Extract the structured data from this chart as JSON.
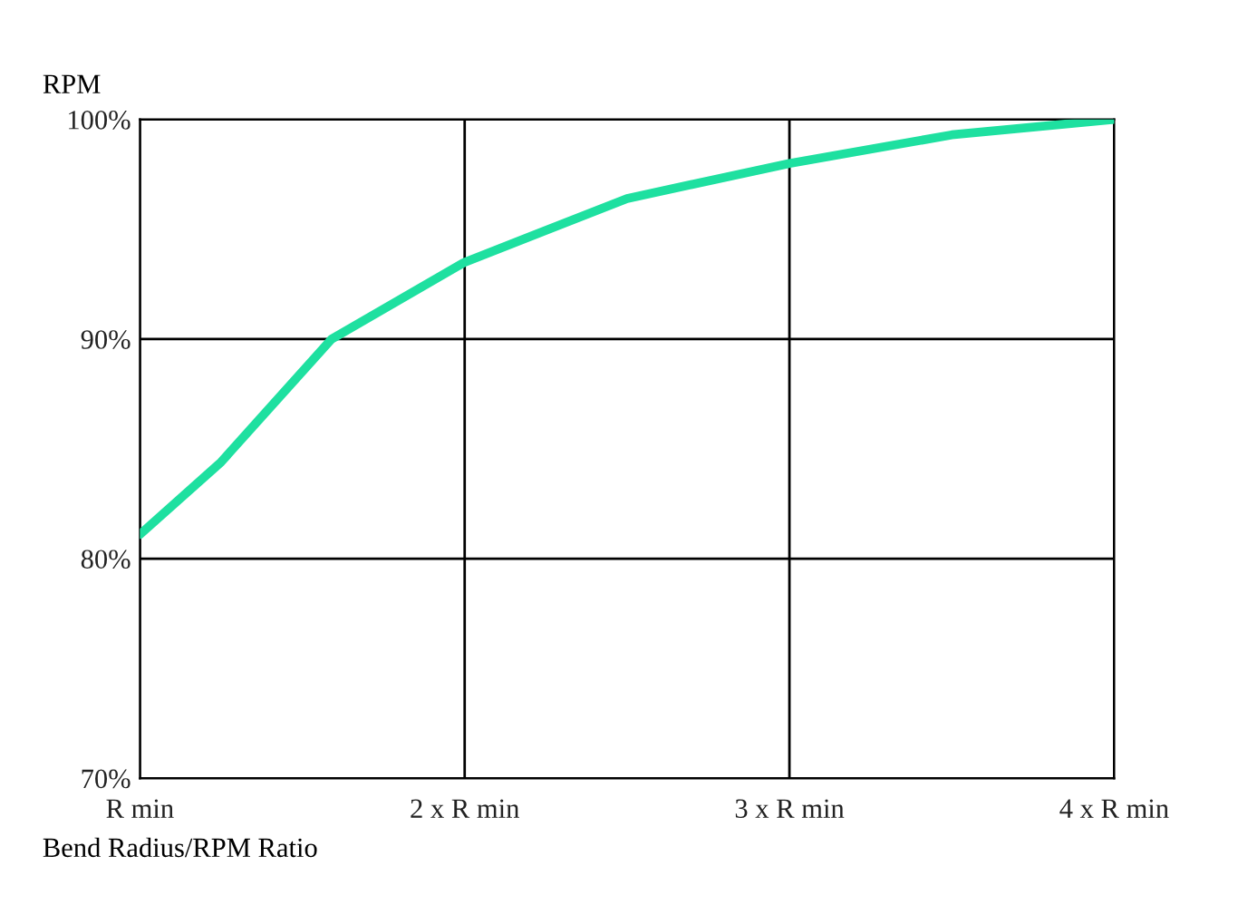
{
  "chart_data": {
    "type": "line",
    "ylabel": "RPM",
    "xlabel": "Bend Radius/RPM Ratio",
    "x": [
      1,
      1.25,
      1.59,
      2,
      2.5,
      3,
      3.5,
      4
    ],
    "series": [
      {
        "color": "#1ee0a0",
        "values": [
          81.1,
          84.4,
          90,
          93.5,
          96.4,
          98,
          99.3,
          100
        ]
      }
    ],
    "xlim": [
      1,
      4
    ],
    "xticks": [
      {
        "value": 1,
        "label": "R min"
      },
      {
        "value": 2,
        "label": "2 x R min"
      },
      {
        "value": 3,
        "label": "3 x R min"
      },
      {
        "value": 4,
        "label": "4 x R min"
      }
    ],
    "ylim": [
      70,
      100
    ],
    "yticks": [
      {
        "value": 70,
        "label": "70%"
      },
      {
        "value": 80,
        "label": "80%"
      },
      {
        "value": 90,
        "label": "90%"
      },
      {
        "value": 100,
        "label": "100%"
      }
    ],
    "grid": true,
    "marker": "none",
    "line_style": "solid",
    "legend": false
  }
}
